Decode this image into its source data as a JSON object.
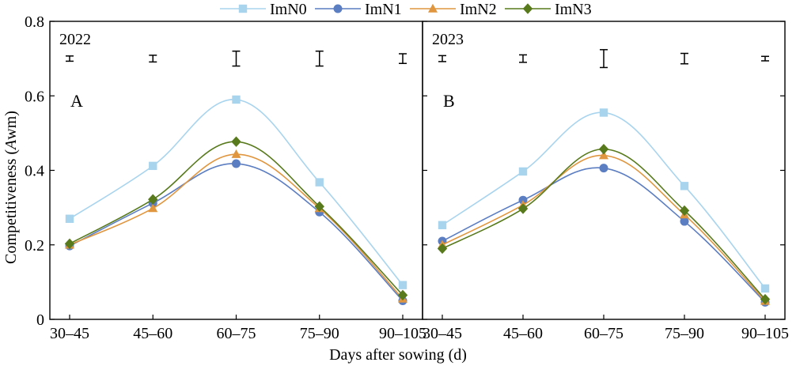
{
  "chart_data": {
    "type": "line",
    "xlabel": "Days after sowing (d)",
    "ylabel_parts": [
      "Competitiveness (",
      "A",
      "wm)"
    ],
    "ylim": [
      0,
      0.8
    ],
    "yticks": [
      "0",
      "0.2",
      "0.4",
      "0.6",
      "0.8"
    ],
    "categories": [
      "30–45",
      "45–60",
      "60–75",
      "75–90",
      "90–105"
    ],
    "legend": [
      {
        "name": "ImN0",
        "color": "#a8d4ee",
        "marker": "square"
      },
      {
        "name": "ImN1",
        "color": "#5b7dc1",
        "marker": "circle"
      },
      {
        "name": "ImN2",
        "color": "#e0963f",
        "marker": "triangle"
      },
      {
        "name": "ImN3",
        "color": "#587a1c",
        "marker": "diamond"
      }
    ],
    "panels": [
      {
        "year": "2022",
        "letter": "A",
        "series": [
          {
            "name": "ImN0",
            "values": [
              0.27,
              0.412,
              0.59,
              0.368,
              0.092
            ]
          },
          {
            "name": "ImN1",
            "values": [
              0.197,
              0.312,
              0.418,
              0.288,
              0.05
            ]
          },
          {
            "name": "ImN2",
            "values": [
              0.2,
              0.298,
              0.443,
              0.298,
              0.055
            ]
          },
          {
            "name": "ImN3",
            "values": [
              0.203,
              0.322,
              0.477,
              0.303,
              0.065
            ]
          }
        ],
        "error_bars": [
          {
            "center": 0.7,
            "half": 0.007
          },
          {
            "center": 0.7,
            "half": 0.009
          },
          {
            "center": 0.7,
            "half": 0.02
          },
          {
            "center": 0.7,
            "half": 0.02
          },
          {
            "center": 0.7,
            "half": 0.013
          }
        ]
      },
      {
        "year": "2023",
        "letter": "B",
        "series": [
          {
            "name": "ImN0",
            "values": [
              0.253,
              0.397,
              0.555,
              0.358,
              0.083
            ]
          },
          {
            "name": "ImN1",
            "values": [
              0.21,
              0.32,
              0.406,
              0.263,
              0.046
            ]
          },
          {
            "name": "ImN2",
            "values": [
              0.2,
              0.307,
              0.44,
              0.281,
              0.049
            ]
          },
          {
            "name": "ImN3",
            "values": [
              0.19,
              0.297,
              0.457,
              0.292,
              0.054
            ]
          }
        ],
        "error_bars": [
          {
            "center": 0.7,
            "half": 0.008
          },
          {
            "center": 0.7,
            "half": 0.01
          },
          {
            "center": 0.7,
            "half": 0.024
          },
          {
            "center": 0.7,
            "half": 0.014
          },
          {
            "center": 0.7,
            "half": 0.006
          }
        ]
      }
    ]
  }
}
